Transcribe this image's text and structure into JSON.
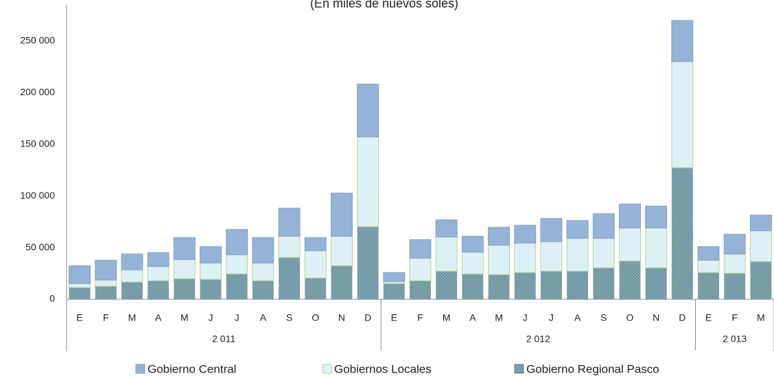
{
  "chart_data": {
    "type": "stacked_bar",
    "subtitle": "(En miles de nuevos soles)",
    "groups": [
      {
        "label": "2 011",
        "categories": [
          "E",
          "F",
          "M",
          "A",
          "M",
          "J",
          "J",
          "A",
          "S",
          "O",
          "N",
          "D"
        ]
      },
      {
        "label": "2 012",
        "categories": [
          "E",
          "F",
          "M",
          "A",
          "M",
          "J",
          "J",
          "A",
          "S",
          "O",
          "N",
          "D"
        ]
      },
      {
        "label": "2 013",
        "categories": [
          "E",
          "F",
          "M"
        ]
      }
    ],
    "series": [
      {
        "name": "Gobierno Regional  Pasco",
        "color": "#8fb3bd",
        "pattern": "crosshatch",
        "values": [
          11300,
          12600,
          16600,
          17900,
          19900,
          19200,
          24500,
          17900,
          40400,
          20600,
          32500,
          70300,
          15200,
          17900,
          27200,
          24500,
          23900,
          25900,
          27200,
          27200,
          30500,
          37100,
          30500,
          127300,
          25900,
          25200,
          36500
        ]
      },
      {
        "name": "Gobiernos Locales",
        "color": "#dcf0f5",
        "edge": "#b9d58a",
        "values": [
          3900,
          6000,
          11900,
          13900,
          18600,
          15900,
          18600,
          17200,
          20600,
          26500,
          28500,
          86800,
          2000,
          21900,
          33100,
          21200,
          28500,
          28500,
          28500,
          31800,
          28500,
          31900,
          38500,
          102800,
          11900,
          18600,
          29800
        ]
      },
      {
        "name": "Gobierno Central",
        "color": "#95b3d7",
        "edge": "#7f9fc7",
        "values": [
          17300,
          19200,
          15300,
          13300,
          21200,
          15900,
          24500,
          24600,
          27200,
          12600,
          41800,
          51100,
          8700,
          17900,
          16600,
          15300,
          17200,
          17200,
          22500,
          17200,
          23900,
          23200,
          21200,
          39700,
          13200,
          19200,
          15200
        ]
      }
    ],
    "ylim": [
      0,
      285000
    ],
    "yticks": [
      0,
      {
        "value": 50000,
        "label": "50 000"
      },
      {
        "value": 100000,
        "label": "100 000"
      },
      {
        "value": 150000,
        "label": "150 000"
      },
      {
        "value": 200000,
        "label": "200 000"
      },
      {
        "value": 250000,
        "label": "250 000"
      }
    ],
    "legend": "bottom"
  }
}
